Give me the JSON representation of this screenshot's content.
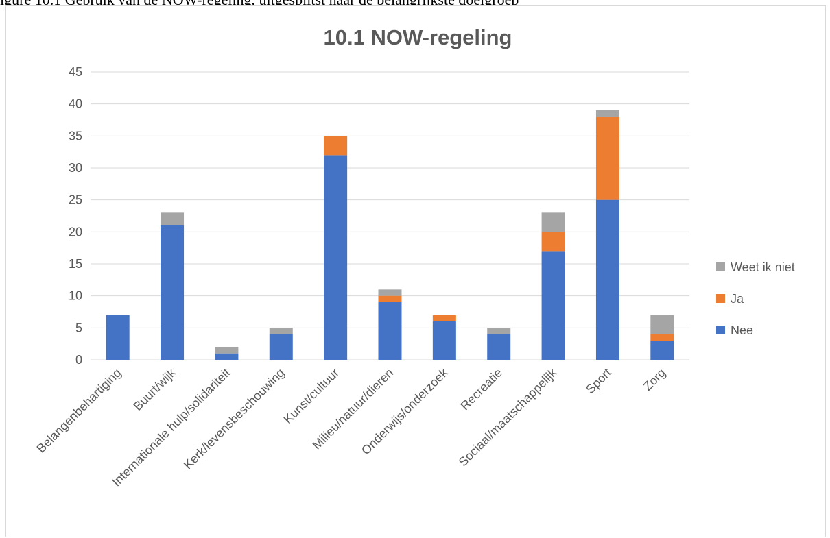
{
  "page": {
    "top_text": "igure 10.1 Gebruik van de NOW-regeling, uitgesplitst naar de belangrijkste doelgroep"
  },
  "chart_data": {
    "type": "bar",
    "stacked": true,
    "title": "10.1 NOW-regeling",
    "xlabel": "",
    "ylabel": "",
    "ylim": [
      0,
      45
    ],
    "yticks": [
      0,
      5,
      10,
      15,
      20,
      25,
      30,
      35,
      40,
      45
    ],
    "grid": true,
    "legend_position": "right",
    "categories": [
      "Belangenbehartiging",
      "Buurt/wijk",
      "Internationale hulp/solidariteit",
      "Kerk/levensbeschouwing",
      "Kunst/cultuur",
      "Milieu/natuur/dieren",
      "Onderwijs/onderzoek",
      "Recreatie",
      "Sociaal/maatschappelijk",
      "Sport",
      "Zorg"
    ],
    "series": [
      {
        "name": "Nee",
        "color": "#4472c4",
        "values": [
          7,
          21,
          1,
          4,
          32,
          9,
          6,
          4,
          17,
          25,
          3
        ]
      },
      {
        "name": "Ja",
        "color": "#ed7d31",
        "values": [
          0,
          0,
          0,
          0,
          3,
          1,
          1,
          0,
          3,
          13,
          1
        ]
      },
      {
        "name": "Weet ik niet",
        "color": "#a5a5a5",
        "values": [
          0,
          2,
          1,
          1,
          0,
          1,
          0,
          1,
          3,
          1,
          3
        ]
      }
    ],
    "legend_order": [
      "Weet ik niet",
      "Ja",
      "Nee"
    ]
  }
}
